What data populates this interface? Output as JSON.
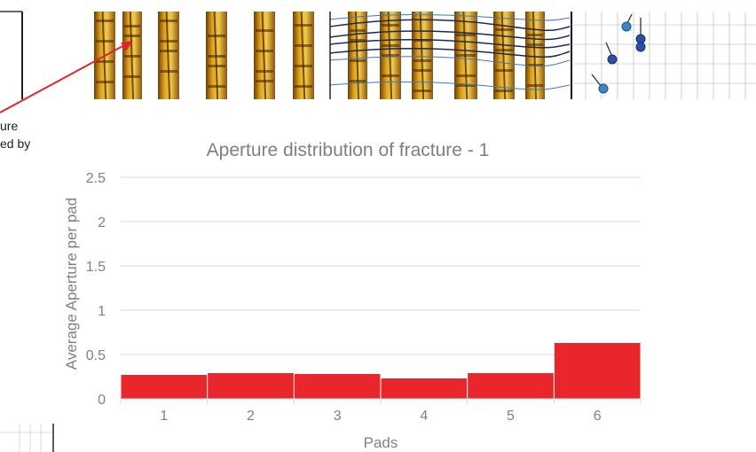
{
  "annotation": {
    "line1": "ure",
    "line2": "ed by"
  },
  "colors": {
    "bar": "#e8262b",
    "grid": "#d9d9d9",
    "text": "#808080",
    "arrow": "#e0242c"
  },
  "chart_data": {
    "type": "bar",
    "title": "Aperture distribution of fracture - 1",
    "xlabel": "Pads",
    "ylabel": "Average Aperture per pad",
    "categories": [
      "1",
      "2",
      "3",
      "4",
      "5",
      "6"
    ],
    "values": [
      0.27,
      0.29,
      0.28,
      0.23,
      0.29,
      0.63
    ],
    "ylim": [
      0,
      2.5
    ],
    "yticks": [
      "0",
      "0.5",
      "1",
      "1.5",
      "2",
      "2.5"
    ],
    "grid": true,
    "legend": "none"
  }
}
